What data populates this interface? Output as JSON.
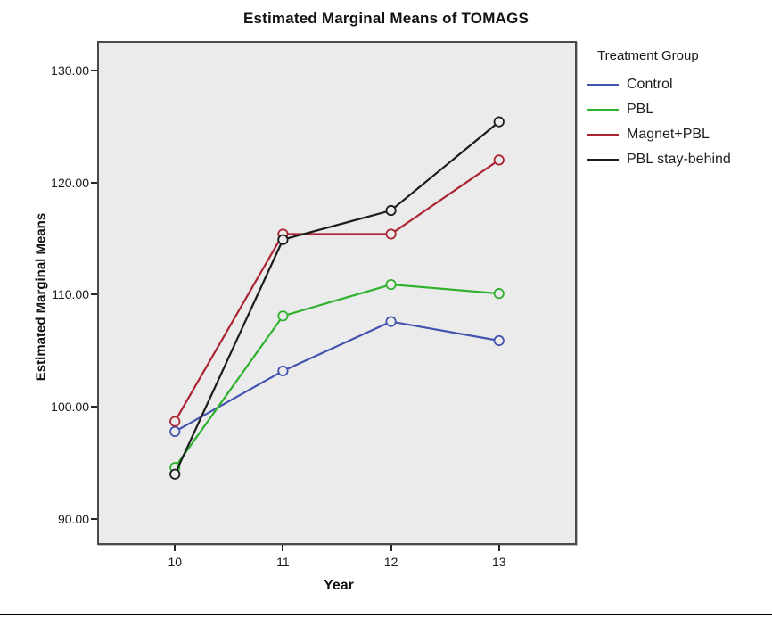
{
  "chart_data": {
    "type": "line",
    "title": "Estimated Marginal Means of TOMAGS",
    "xlabel": "Year",
    "ylabel": "Estimated Marginal Means",
    "x": [
      10,
      11,
      12,
      13
    ],
    "xtick_labels": [
      "10",
      "11",
      "12",
      "13"
    ],
    "yticks": [
      130,
      120,
      110,
      100,
      90
    ],
    "ytick_labels": [
      "130.00",
      "120.00",
      "110.00",
      "100.00",
      "90.00"
    ],
    "xlim": [
      9.28,
      13.72
    ],
    "ylim": [
      87.7,
      132.6
    ],
    "grid": false,
    "legend": {
      "title": "Treatment Group",
      "position": "top-right-outside"
    },
    "series": [
      {
        "name": "Control",
        "color": "#4353ae",
        "values": [
          97.8,
          103.2,
          107.6,
          105.9
        ]
      },
      {
        "name": "PBL",
        "color": "#2fb12f",
        "values": [
          94.6,
          108.1,
          110.9,
          110.1
        ]
      },
      {
        "name": "Magnet+PBL",
        "color": "#aa2531",
        "values": [
          98.7,
          115.4,
          115.4,
          122.0
        ]
      },
      {
        "name": "PBL stay-behind",
        "color": "#1c1c1c",
        "values": [
          94.0,
          114.9,
          117.5,
          125.4
        ]
      }
    ],
    "colors": {
      "plot_bg": "#ebebeb",
      "axis": "#262626",
      "title_text": "#111111"
    },
    "marker": "open-circle"
  }
}
